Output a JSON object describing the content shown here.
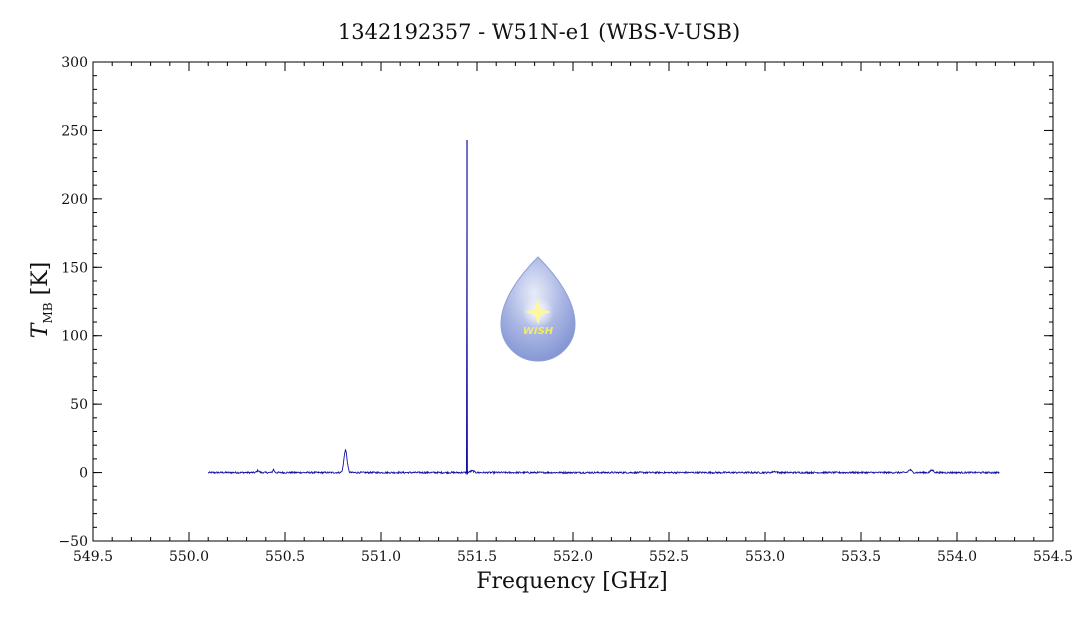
{
  "chart_data": {
    "type": "line",
    "title": "1342192357 - W51N-e1 (WBS-V-USB)",
    "xlabel": "Frequency [GHz]",
    "ylabel_main": "T",
    "ylabel_sub": "MB",
    "ylabel_unit": " [K]",
    "xlim": [
      549.5,
      554.5
    ],
    "ylim": [
      -50,
      300
    ],
    "xticks": [
      "549.5",
      "550.0",
      "550.5",
      "551.0",
      "551.5",
      "552.0",
      "552.5",
      "553.0",
      "553.5",
      "554.0",
      "554.5"
    ],
    "yticks": [
      "300",
      "250",
      "200",
      "150",
      "100",
      "50",
      "0",
      "−50"
    ],
    "grid": false,
    "series": [
      {
        "color": "#1010a0",
        "x_range": [
          550.1,
          554.22
        ],
        "baseline": 0,
        "features": [
          {
            "x": 550.36,
            "peak": 1.5,
            "width": 0.006
          },
          {
            "x": 550.44,
            "peak": 2.2,
            "width": 0.004
          },
          {
            "x": 550.815,
            "peak": 16.5,
            "width": 0.008
          },
          {
            "x": 551.448,
            "peak": 243,
            "width": 0.0006
          },
          {
            "x": 551.475,
            "peak": 1.2,
            "width": 0.01
          },
          {
            "x": 553.05,
            "peak": 0.8,
            "width": 0.01
          },
          {
            "x": 553.755,
            "peak": 2.0,
            "width": 0.008
          },
          {
            "x": 553.87,
            "peak": 1.8,
            "width": 0.008
          }
        ]
      }
    ]
  },
  "logo": {
    "text": "WISH",
    "colors": {
      "drop_top": "#d8dff2",
      "drop_bottom": "#7f93d2",
      "star": "#fff7a0",
      "text": "#f5e96a"
    }
  }
}
